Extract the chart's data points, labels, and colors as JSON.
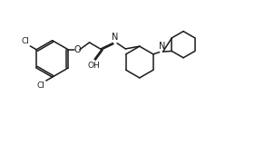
{
  "bg_color": "#ffffff",
  "line_color": "#1a1a1a",
  "line_width": 1.1,
  "font_size": 6.5,
  "fig_width": 2.81,
  "fig_height": 1.59,
  "dpi": 100,
  "xlim": [
    0,
    10
  ],
  "ylim": [
    0,
    5.66
  ]
}
